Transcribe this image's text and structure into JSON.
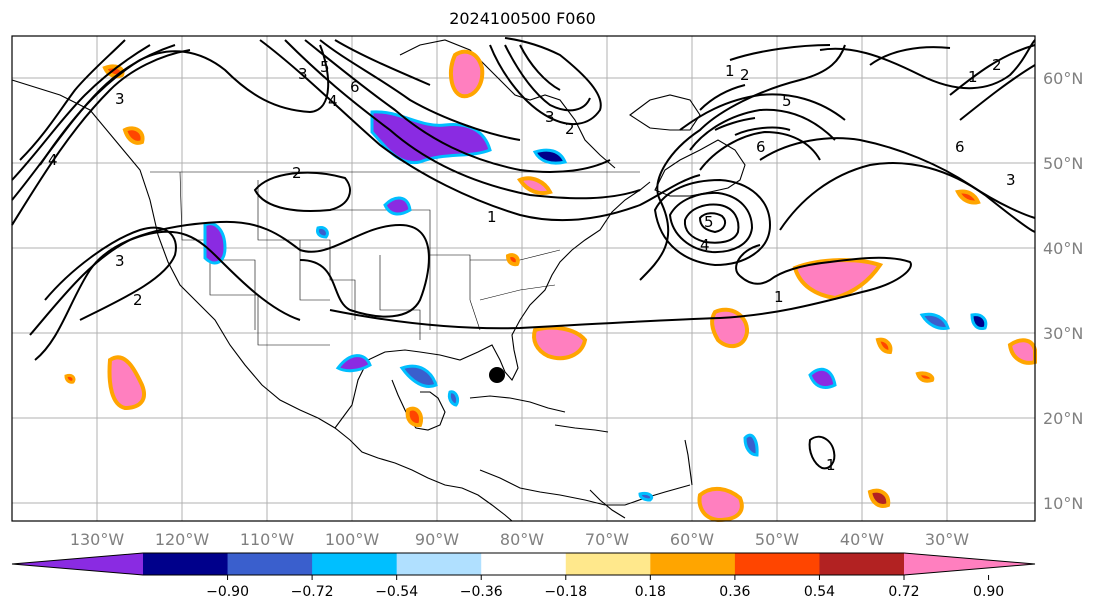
{
  "title": "2024100500 F060",
  "lon_labels": [
    "130°W",
    "120°W",
    "110°W",
    "100°W",
    "90°W",
    "80°W",
    "70°W",
    "60°W",
    "50°W",
    "40°W",
    "30°W"
  ],
  "lat_labels": [
    "60°N",
    "50°N",
    "40°N",
    "30°N",
    "20°N",
    "10°N"
  ],
  "contour_labels": [
    "1",
    "2",
    "3",
    "4",
    "5",
    "6",
    "1",
    "2",
    "3",
    "4",
    "5",
    "6",
    "2",
    "2",
    "3",
    "1",
    "1",
    "2",
    "3",
    "1"
  ],
  "colorbar": {
    "ticks": [
      "−0.90",
      "−0.72",
      "−0.54",
      "−0.36",
      "−0.18",
      "0.18",
      "0.36",
      "0.54",
      "0.72",
      "0.90"
    ],
    "colors": [
      "#8a2be2",
      "#00008b",
      "#3a5fcd",
      "#00bfff",
      "#b0e0ff",
      "#ffffff",
      "#ffe88c",
      "#ffa500",
      "#ff4500",
      "#b22222",
      "#ff7fbf"
    ]
  },
  "marker": "storm-position-dot"
}
